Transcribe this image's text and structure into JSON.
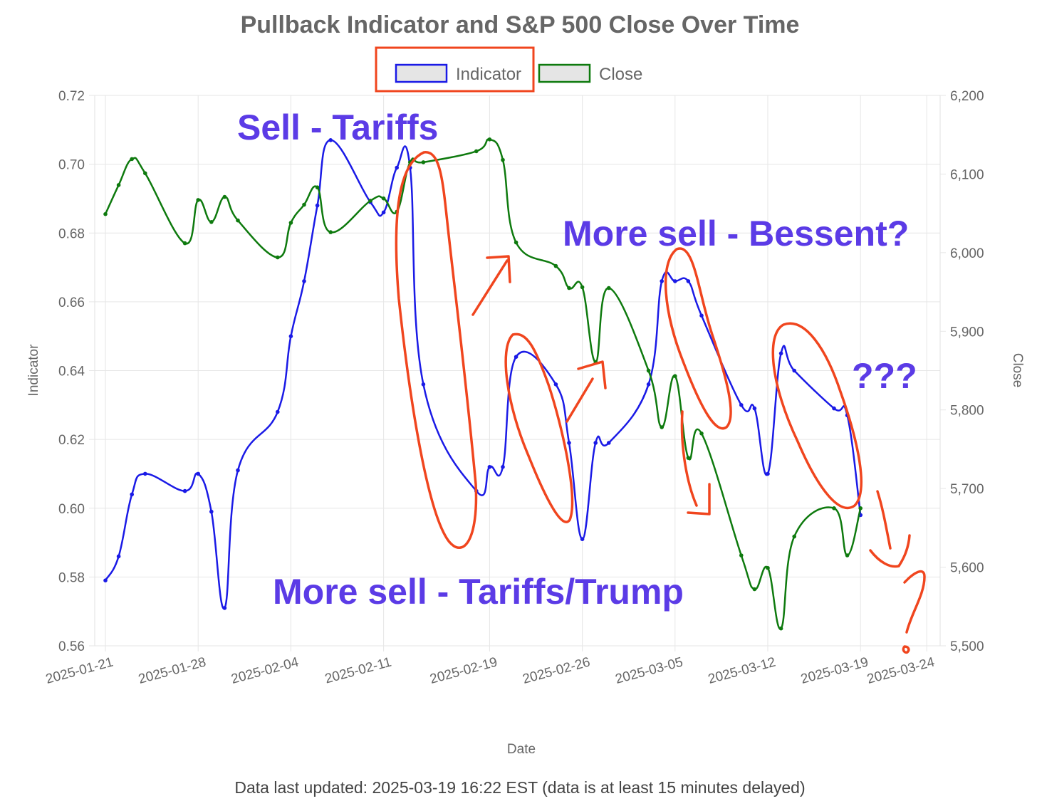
{
  "chart_data": {
    "type": "line",
    "title": "Pullback Indicator and S&P 500 Close Over Time",
    "xlabel": "Date",
    "ylabel_left": "Indicator",
    "ylabel_right": "Close",
    "x_tick_labels": [
      "2025-01-21",
      "2025-01-28",
      "2025-02-04",
      "2025-02-11",
      "2025-02-19",
      "2025-02-26",
      "2025-03-05",
      "2025-03-12",
      "2025-03-19",
      "2025-03-24"
    ],
    "y_left_ticks": [
      "0.72",
      "0.70",
      "0.68",
      "0.66",
      "0.64",
      "0.62",
      "0.60",
      "0.58",
      "0.56"
    ],
    "y_right_ticks": [
      "6,200",
      "6,100",
      "6,000",
      "5,900",
      "5,800",
      "5,700",
      "5,600",
      "5,500"
    ],
    "ylim_left": [
      0.56,
      0.72
    ],
    "ylim_right": [
      5500,
      6200
    ],
    "grid": true,
    "legend_position": "top",
    "series": [
      {
        "name": "Indicator",
        "axis": "left",
        "color": "#1a1ae6",
        "points": [
          [
            "2025-01-21",
            0.579
          ],
          [
            "2025-01-22",
            0.586
          ],
          [
            "2025-01-23",
            0.604
          ],
          [
            "2025-01-24",
            0.61
          ],
          [
            "2025-01-27",
            0.605
          ],
          [
            "2025-01-28",
            0.61
          ],
          [
            "2025-01-29",
            0.599
          ],
          [
            "2025-01-30",
            0.571
          ],
          [
            "2025-01-31",
            0.611
          ],
          [
            "2025-02-03",
            0.628
          ],
          [
            "2025-02-04",
            0.65
          ],
          [
            "2025-02-05",
            0.666
          ],
          [
            "2025-02-06",
            0.688
          ],
          [
            "2025-02-07",
            0.707
          ],
          [
            "2025-02-10",
            0.689
          ],
          [
            "2025-02-11",
            0.686
          ],
          [
            "2025-02-12",
            0.699
          ],
          [
            "2025-02-13",
            0.699
          ],
          [
            "2025-02-14",
            0.636
          ],
          [
            "2025-02-18",
            0.605
          ],
          [
            "2025-02-19",
            0.612
          ],
          [
            "2025-02-20",
            0.612
          ],
          [
            "2025-02-21",
            0.644
          ],
          [
            "2025-02-24",
            0.636
          ],
          [
            "2025-02-25",
            0.619
          ],
          [
            "2025-02-26",
            0.591
          ],
          [
            "2025-02-27",
            0.619
          ],
          [
            "2025-02-28",
            0.619
          ],
          [
            "2025-03-03",
            0.636
          ],
          [
            "2025-03-04",
            0.666
          ],
          [
            "2025-03-05",
            0.666
          ],
          [
            "2025-03-06",
            0.666
          ],
          [
            "2025-03-07",
            0.656
          ],
          [
            "2025-03-10",
            0.63
          ],
          [
            "2025-03-11",
            0.629
          ],
          [
            "2025-03-12",
            0.61
          ],
          [
            "2025-03-13",
            0.645
          ],
          [
            "2025-03-14",
            0.64
          ],
          [
            "2025-03-17",
            0.629
          ],
          [
            "2025-03-18",
            0.627
          ],
          [
            "2025-03-19",
            0.598
          ]
        ]
      },
      {
        "name": "Close",
        "axis": "right",
        "color": "#0e7a0e",
        "points": [
          [
            "2025-01-21",
            6049
          ],
          [
            "2025-01-22",
            6086
          ],
          [
            "2025-01-23",
            6119
          ],
          [
            "2025-01-24",
            6101
          ],
          [
            "2025-01-27",
            6012
          ],
          [
            "2025-01-28",
            6067
          ],
          [
            "2025-01-29",
            6039
          ],
          [
            "2025-01-30",
            6071
          ],
          [
            "2025-01-31",
            6041
          ],
          [
            "2025-02-03",
            5994
          ],
          [
            "2025-02-04",
            6038
          ],
          [
            "2025-02-05",
            6061
          ],
          [
            "2025-02-06",
            6083
          ],
          [
            "2025-02-07",
            6026
          ],
          [
            "2025-02-10",
            6066
          ],
          [
            "2025-02-11",
            6069
          ],
          [
            "2025-02-12",
            6052
          ],
          [
            "2025-02-13",
            6115
          ],
          [
            "2025-02-14",
            6115
          ],
          [
            "2025-02-18",
            6129
          ],
          [
            "2025-02-19",
            6144
          ],
          [
            "2025-02-20",
            6118
          ],
          [
            "2025-02-21",
            6013
          ],
          [
            "2025-02-24",
            5983
          ],
          [
            "2025-02-25",
            5955
          ],
          [
            "2025-02-26",
            5956
          ],
          [
            "2025-02-27",
            5861
          ],
          [
            "2025-02-28",
            5955
          ],
          [
            "2025-03-03",
            5850
          ],
          [
            "2025-03-04",
            5778
          ],
          [
            "2025-03-05",
            5843
          ],
          [
            "2025-03-06",
            5739
          ],
          [
            "2025-03-07",
            5770
          ],
          [
            "2025-03-10",
            5615
          ],
          [
            "2025-03-11",
            5572
          ],
          [
            "2025-03-12",
            5599
          ],
          [
            "2025-03-13",
            5522
          ],
          [
            "2025-03-14",
            5639
          ],
          [
            "2025-03-17",
            5675
          ],
          [
            "2025-03-18",
            5615
          ],
          [
            "2025-03-19",
            5675
          ]
        ]
      }
    ],
    "annotations": [
      "Sell - Tariffs",
      "More sell - Bessent?",
      "More sell - Tariffs/Trump",
      "???"
    ]
  },
  "footer": "Data last updated: 2025-03-19 16:22 EST (data is at least 15 minutes delayed)",
  "colors": {
    "annotation_text": "#5b3be6",
    "annotation_marks": "#f0451e",
    "grid": "#e6e6e6"
  }
}
